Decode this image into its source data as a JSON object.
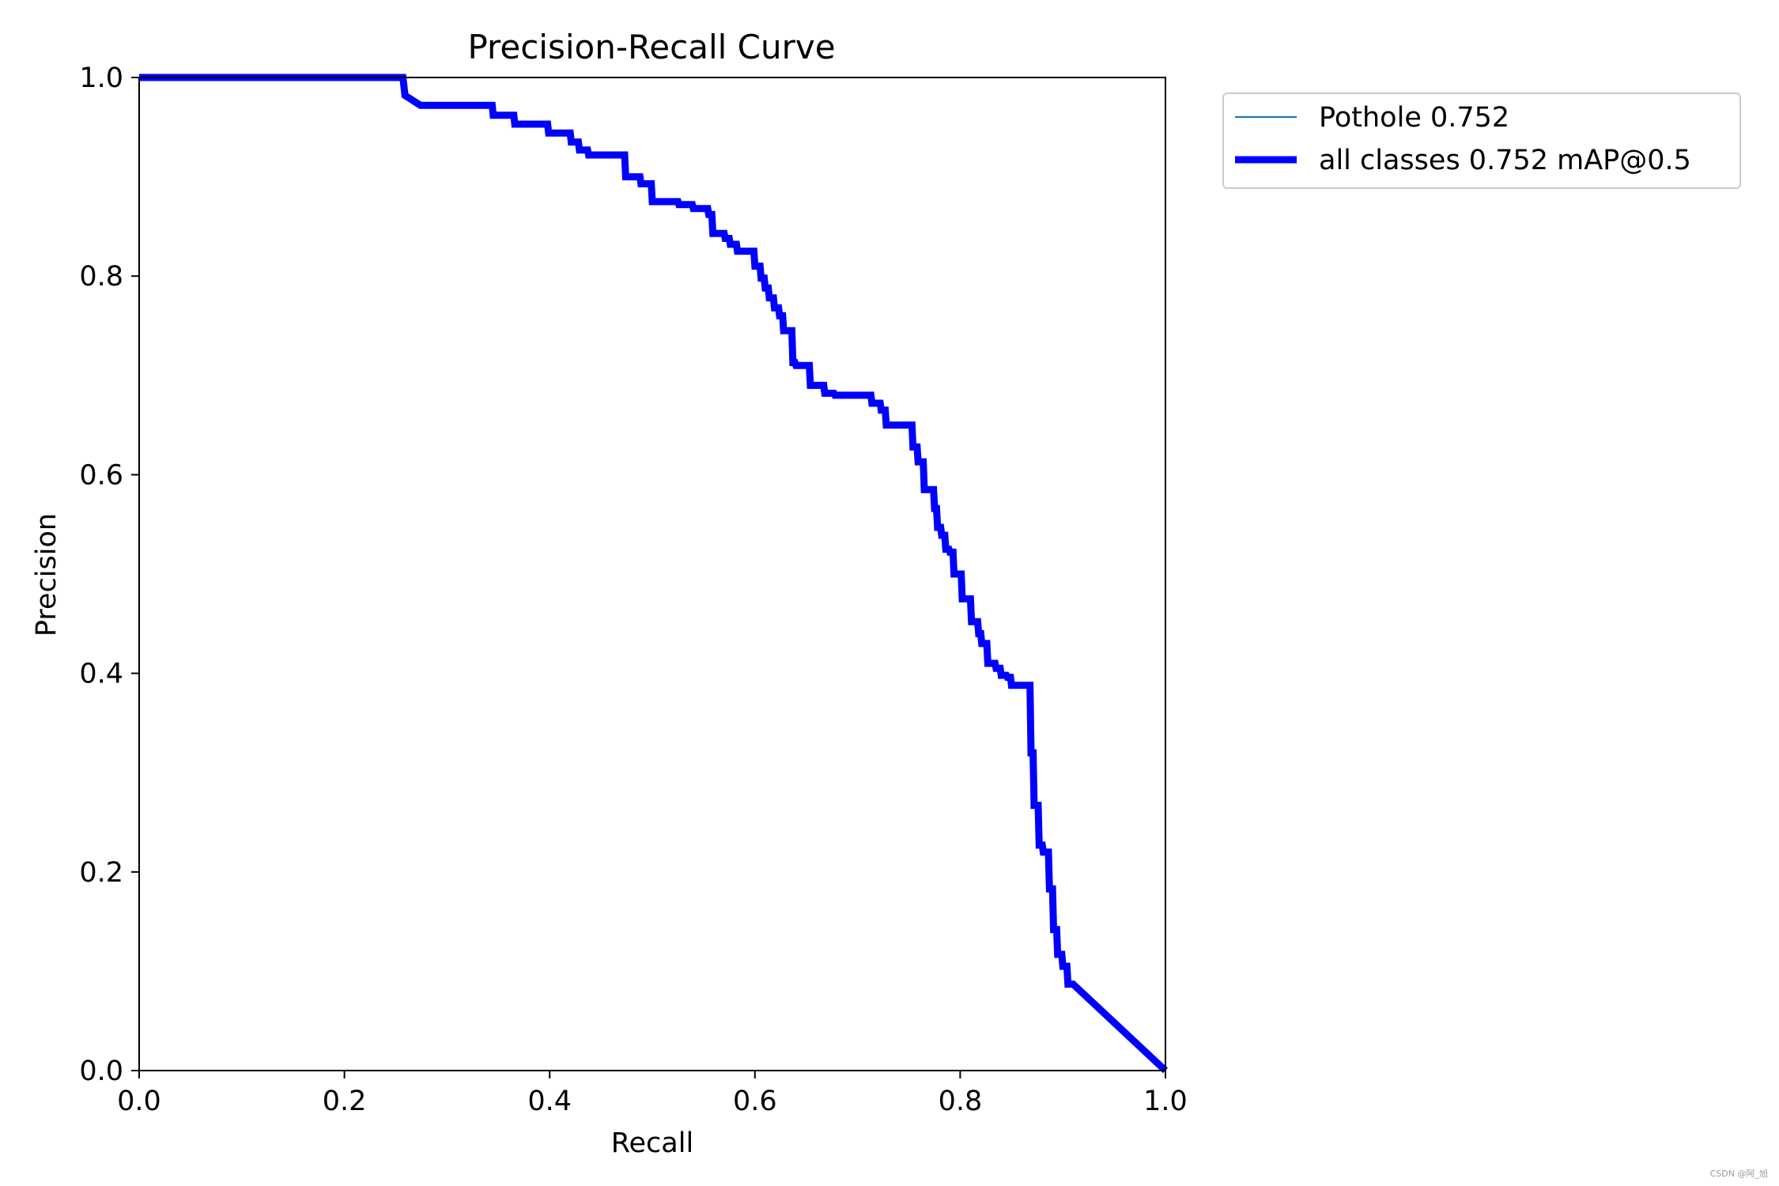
{
  "watermark": "CSDN @阿_旭",
  "colors": {
    "pothole": "#1f77b4",
    "all_classes": "#0000ff"
  },
  "chart_data": {
    "type": "line",
    "title": "Precision-Recall Curve",
    "xlabel": "Recall",
    "ylabel": "Precision",
    "xlim": [
      0,
      1
    ],
    "ylim": [
      0,
      1
    ],
    "xticks": [
      "0.0",
      "0.2",
      "0.4",
      "0.6",
      "0.8",
      "1.0"
    ],
    "yticks": [
      "0.0",
      "0.2",
      "0.4",
      "0.6",
      "0.8",
      "1.0"
    ],
    "grid": false,
    "legend_position": "outside-top-right",
    "legend": [
      "Pothole 0.752",
      "all classes 0.752 mAP@0.5"
    ],
    "series": [
      {
        "name": "Pothole 0.752",
        "x": [
          0.0,
          0.257,
          0.259,
          0.274,
          0.344,
          0.345,
          0.365,
          0.366,
          0.398,
          0.399,
          0.42,
          0.421,
          0.428,
          0.429,
          0.437,
          0.438,
          0.473,
          0.474,
          0.488,
          0.489,
          0.499,
          0.5,
          0.525,
          0.526,
          0.539,
          0.54,
          0.554,
          0.555,
          0.558,
          0.559,
          0.57,
          0.571,
          0.575,
          0.576,
          0.582,
          0.583,
          0.599,
          0.6,
          0.605,
          0.606,
          0.609,
          0.61,
          0.613,
          0.614,
          0.618,
          0.619,
          0.623,
          0.624,
          0.627,
          0.628,
          0.636,
          0.637,
          0.639,
          0.64,
          0.653,
          0.654,
          0.667,
          0.668,
          0.677,
          0.678,
          0.713,
          0.714,
          0.722,
          0.723,
          0.727,
          0.728,
          0.753,
          0.754,
          0.758,
          0.759,
          0.764,
          0.765,
          0.774,
          0.775,
          0.777,
          0.778,
          0.781,
          0.782,
          0.785,
          0.786,
          0.789,
          0.79,
          0.793,
          0.794,
          0.801,
          0.802,
          0.81,
          0.811,
          0.817,
          0.818,
          0.82,
          0.821,
          0.826,
          0.827,
          0.834,
          0.835,
          0.839,
          0.84,
          0.845,
          0.846,
          0.849,
          0.85,
          0.868,
          0.869,
          0.871,
          0.872,
          0.876,
          0.877,
          0.88,
          0.881,
          0.886,
          0.887,
          0.89,
          0.891,
          0.894,
          0.895,
          0.899,
          0.9,
          0.904,
          0.905,
          0.91,
          1.0
        ],
        "y": [
          1.0,
          1.0,
          0.982,
          0.972,
          0.972,
          0.962,
          0.962,
          0.953,
          0.953,
          0.944,
          0.944,
          0.935,
          0.935,
          0.927,
          0.927,
          0.922,
          0.922,
          0.9,
          0.9,
          0.893,
          0.893,
          0.875,
          0.875,
          0.872,
          0.872,
          0.868,
          0.868,
          0.862,
          0.862,
          0.843,
          0.843,
          0.838,
          0.838,
          0.832,
          0.832,
          0.825,
          0.825,
          0.81,
          0.81,
          0.798,
          0.798,
          0.788,
          0.788,
          0.778,
          0.778,
          0.768,
          0.768,
          0.76,
          0.76,
          0.745,
          0.745,
          0.713,
          0.713,
          0.71,
          0.71,
          0.69,
          0.69,
          0.682,
          0.682,
          0.68,
          0.68,
          0.672,
          0.672,
          0.665,
          0.665,
          0.65,
          0.65,
          0.628,
          0.628,
          0.613,
          0.613,
          0.585,
          0.585,
          0.566,
          0.566,
          0.547,
          0.547,
          0.539,
          0.539,
          0.525,
          0.525,
          0.522,
          0.522,
          0.5,
          0.5,
          0.475,
          0.475,
          0.452,
          0.452,
          0.44,
          0.44,
          0.43,
          0.43,
          0.41,
          0.41,
          0.405,
          0.405,
          0.398,
          0.398,
          0.396,
          0.396,
          0.388,
          0.388,
          0.32,
          0.32,
          0.267,
          0.267,
          0.227,
          0.227,
          0.22,
          0.22,
          0.183,
          0.183,
          0.142,
          0.142,
          0.117,
          0.117,
          0.105,
          0.105,
          0.087,
          0.087,
          0.0
        ]
      },
      {
        "name": "all classes 0.752 mAP@0.5",
        "x": [
          0.0,
          0.257,
          0.259,
          0.274,
          0.344,
          0.345,
          0.365,
          0.366,
          0.398,
          0.399,
          0.42,
          0.421,
          0.428,
          0.429,
          0.437,
          0.438,
          0.473,
          0.474,
          0.488,
          0.489,
          0.499,
          0.5,
          0.525,
          0.526,
          0.539,
          0.54,
          0.554,
          0.555,
          0.558,
          0.559,
          0.57,
          0.571,
          0.575,
          0.576,
          0.582,
          0.583,
          0.599,
          0.6,
          0.605,
          0.606,
          0.609,
          0.61,
          0.613,
          0.614,
          0.618,
          0.619,
          0.623,
          0.624,
          0.627,
          0.628,
          0.636,
          0.637,
          0.639,
          0.64,
          0.653,
          0.654,
          0.667,
          0.668,
          0.677,
          0.678,
          0.713,
          0.714,
          0.722,
          0.723,
          0.727,
          0.728,
          0.753,
          0.754,
          0.758,
          0.759,
          0.764,
          0.765,
          0.774,
          0.775,
          0.777,
          0.778,
          0.781,
          0.782,
          0.785,
          0.786,
          0.789,
          0.79,
          0.793,
          0.794,
          0.801,
          0.802,
          0.81,
          0.811,
          0.817,
          0.818,
          0.82,
          0.821,
          0.826,
          0.827,
          0.834,
          0.835,
          0.839,
          0.84,
          0.845,
          0.846,
          0.849,
          0.85,
          0.868,
          0.869,
          0.871,
          0.872,
          0.876,
          0.877,
          0.88,
          0.881,
          0.886,
          0.887,
          0.89,
          0.891,
          0.894,
          0.895,
          0.899,
          0.9,
          0.904,
          0.905,
          0.91,
          1.0
        ],
        "y": [
          1.0,
          1.0,
          0.982,
          0.972,
          0.972,
          0.962,
          0.962,
          0.953,
          0.953,
          0.944,
          0.944,
          0.935,
          0.935,
          0.927,
          0.927,
          0.922,
          0.922,
          0.9,
          0.9,
          0.893,
          0.893,
          0.875,
          0.875,
          0.872,
          0.872,
          0.868,
          0.868,
          0.862,
          0.862,
          0.843,
          0.843,
          0.838,
          0.838,
          0.832,
          0.832,
          0.825,
          0.825,
          0.81,
          0.81,
          0.798,
          0.798,
          0.788,
          0.788,
          0.778,
          0.778,
          0.768,
          0.768,
          0.76,
          0.76,
          0.745,
          0.745,
          0.713,
          0.713,
          0.71,
          0.71,
          0.69,
          0.69,
          0.682,
          0.682,
          0.68,
          0.68,
          0.672,
          0.672,
          0.665,
          0.665,
          0.65,
          0.65,
          0.628,
          0.628,
          0.613,
          0.613,
          0.585,
          0.585,
          0.566,
          0.566,
          0.547,
          0.547,
          0.539,
          0.539,
          0.525,
          0.525,
          0.522,
          0.522,
          0.5,
          0.5,
          0.475,
          0.475,
          0.452,
          0.452,
          0.44,
          0.44,
          0.43,
          0.43,
          0.41,
          0.41,
          0.405,
          0.405,
          0.398,
          0.398,
          0.396,
          0.396,
          0.388,
          0.388,
          0.32,
          0.32,
          0.267,
          0.267,
          0.227,
          0.227,
          0.22,
          0.22,
          0.183,
          0.183,
          0.142,
          0.142,
          0.117,
          0.117,
          0.105,
          0.105,
          0.087,
          0.087,
          0.0
        ]
      }
    ]
  }
}
